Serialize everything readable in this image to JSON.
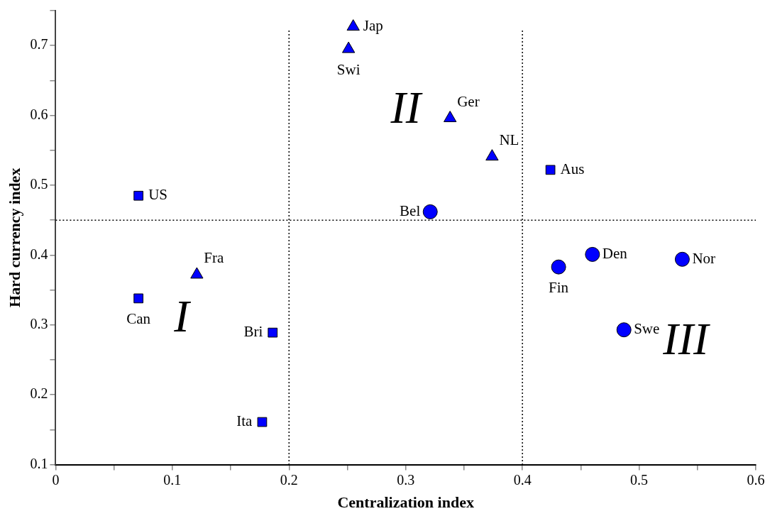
{
  "chart_data": {
    "type": "scatter",
    "xlabel": "Centralization index",
    "ylabel": "Hard currency index",
    "grid": false,
    "legend": false,
    "xlim": [
      0,
      0.6
    ],
    "ylim": [
      0.1,
      0.75
    ],
    "xticks": [
      0,
      {
        "value": 0.05,
        "label": null
      },
      0.1,
      {
        "value": 0.15,
        "label": null
      },
      0.2,
      {
        "value": 0.25,
        "label": null
      },
      0.3,
      {
        "value": 0.35,
        "label": null
      },
      0.4,
      {
        "value": 0.45,
        "label": null
      },
      0.5,
      {
        "value": 0.55,
        "label": null
      },
      0.6
    ],
    "yticks": [
      0.1,
      {
        "value": 0.15,
        "label": null
      },
      0.2,
      {
        "value": 0.25,
        "label": null
      },
      0.3,
      {
        "value": 0.35,
        "label": null
      },
      0.4,
      {
        "value": 0.45,
        "label": null
      },
      0.5,
      {
        "value": 0.55,
        "label": null
      },
      0.6,
      {
        "value": 0.65,
        "label": null
      },
      0.7,
      {
        "value": 0.75,
        "label": null
      }
    ],
    "series": [
      {
        "marker": "square",
        "color": "#0000ff",
        "x": [
          0.071,
          0.071,
          0.186,
          0.177,
          0.424
        ],
        "values": [
          0.485,
          0.338,
          0.289,
          0.161,
          0.522
        ],
        "value_labels": [
          "US",
          "Can",
          "Bri",
          "Ita",
          "Aus"
        ]
      },
      {
        "marker": "triangle",
        "color": "#0000ff",
        "x": [
          0.121,
          0.255,
          0.251,
          0.338,
          0.374
        ],
        "values": [
          0.372,
          0.727,
          0.695,
          0.596,
          0.541
        ],
        "value_labels": [
          "Fra",
          "Jap",
          "Swi",
          "Ger",
          "NL"
        ]
      },
      {
        "marker": "circle",
        "color": "#0000ff",
        "x": [
          0.321,
          0.431,
          0.46,
          0.537,
          0.487
        ],
        "values": [
          0.462,
          0.383,
          0.401,
          0.394,
          0.293
        ],
        "value_labels": [
          "Bel",
          "Fin",
          "Den",
          "Nor",
          "Swe"
        ]
      }
    ],
    "ref_lines": [
      {
        "axis": "x",
        "value": 0.2,
        "color": "#000000",
        "line_style": "dotted"
      },
      {
        "axis": "x",
        "value": 0.4,
        "color": "#000000",
        "line_style": "dotted"
      },
      {
        "axis": "y",
        "value": 0.45,
        "color": "#000000",
        "line_style": "dotted"
      }
    ],
    "annotations": [
      "I",
      "II",
      "III"
    ]
  }
}
